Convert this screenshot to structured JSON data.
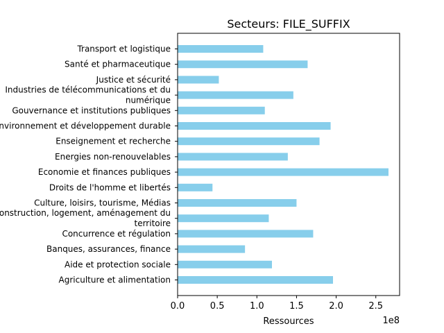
{
  "chart_data": {
    "type": "bar",
    "orientation": "horizontal",
    "title": "Secteurs: FILE_SUFFIX",
    "xlabel": "Ressources",
    "ylabel": "",
    "scale_label": "1e8",
    "xlim": [
      0,
      2.8
    ],
    "xticks": [
      "0.0",
      "0.5",
      "1.0",
      "1.5",
      "2.0",
      "2.5"
    ],
    "bar_color": "#87ceeb",
    "grid": false,
    "categories": [
      [
        "Transport et logistique"
      ],
      [
        "Santé et pharmaceutique"
      ],
      [
        "Justice et sécurité"
      ],
      [
        "Industries de télécommunications et du",
        "numérique"
      ],
      [
        "Gouvernance et institutions publiques"
      ],
      [
        "Environnement et développement durable"
      ],
      [
        "Enseignement et recherche"
      ],
      [
        "Energies non-renouvelables"
      ],
      [
        "Economie et finances publiques"
      ],
      [
        "Droits de l'homme et libertés"
      ],
      [
        "Culture, loisirs, tourisme, Médias"
      ],
      [
        "Construction, logement, aménagement du",
        "territoire"
      ],
      [
        "Concurrence et régulation"
      ],
      [
        "Banques, assurances, finance"
      ],
      [
        "Aide et protection sociale"
      ],
      [
        "Agriculture et alimentation"
      ]
    ],
    "values": [
      1.08,
      1.64,
      0.52,
      1.46,
      1.1,
      1.93,
      1.79,
      1.39,
      2.66,
      0.44,
      1.5,
      1.15,
      1.71,
      0.85,
      1.19,
      1.96
    ]
  }
}
